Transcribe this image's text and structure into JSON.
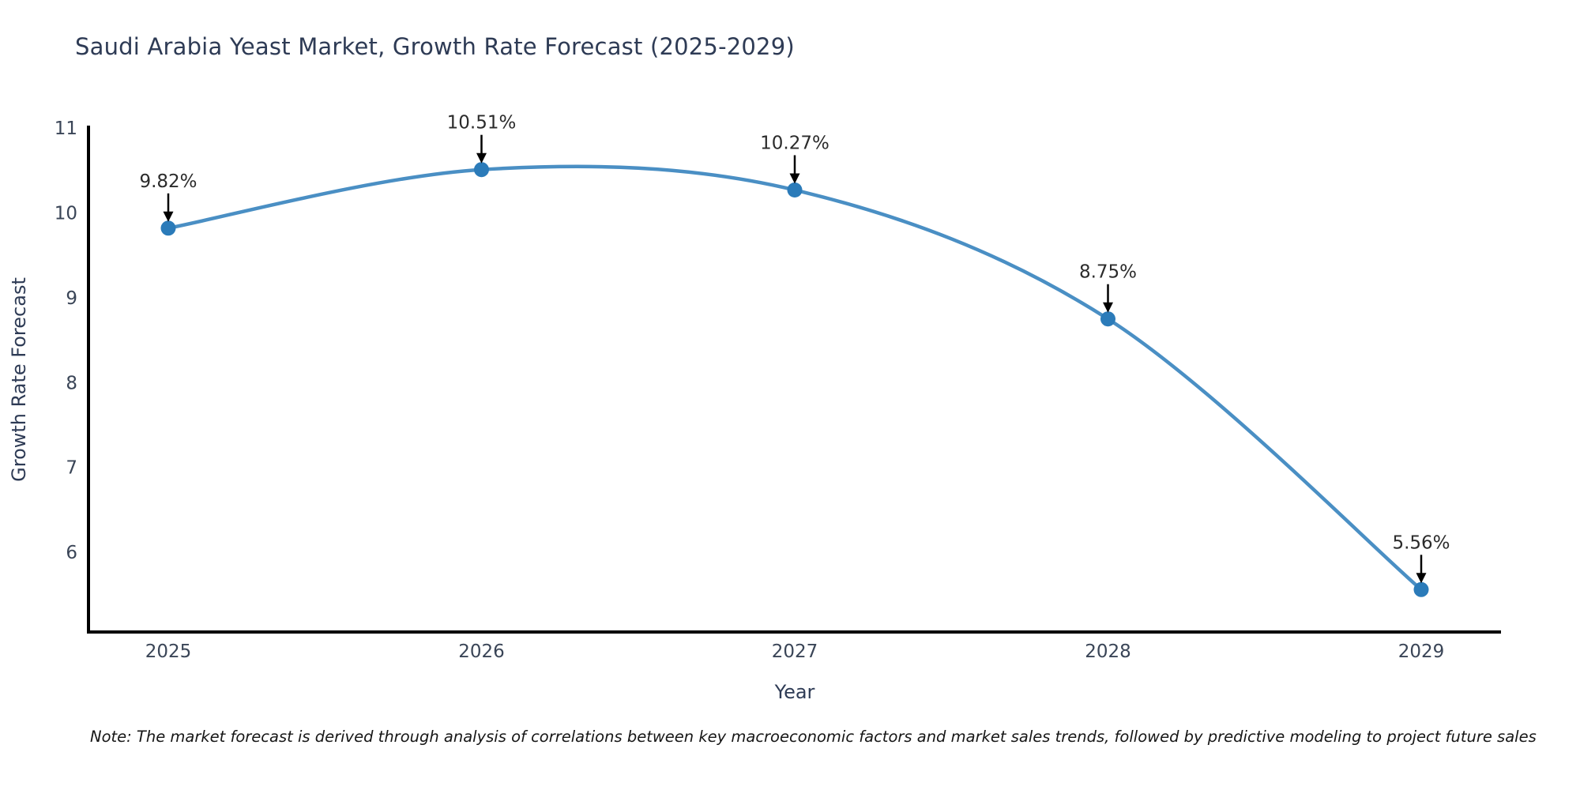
{
  "title": "Saudi Arabia Yeast Market, Growth Rate Forecast (2025-2029)",
  "note": "Note: The market forecast is derived through analysis of correlations between key macroeconomic factors and market sales trends, followed by predictive modeling to project future sales",
  "chart_data": {
    "type": "line",
    "title": "Saudi Arabia Yeast Market, Growth Rate Forecast (2025-2029)",
    "xlabel": "Year",
    "ylabel": "Growth Rate Forecast",
    "x": [
      2025,
      2026,
      2027,
      2028,
      2029
    ],
    "values": [
      9.82,
      10.51,
      10.27,
      8.75,
      5.56
    ],
    "point_labels": [
      "9.82%",
      "10.51%",
      "10.27%",
      "8.75%",
      "5.56%"
    ],
    "yticks": [
      6,
      7,
      8,
      9,
      10,
      11
    ],
    "ylim": [
      5.06,
      11.01
    ],
    "grid": false,
    "legend_position": "none",
    "smooth_spline": true,
    "colors": {
      "line": "#4a8fc4",
      "marker": "#2b7bb9",
      "axis": "#000000",
      "tick_label": "#3a4557",
      "axis_title": "#2e3b55",
      "annotation_text": "#2b2b2b",
      "annotation_arrow": "#000000",
      "title": "#2e3b55",
      "background": "#ffffff"
    }
  }
}
